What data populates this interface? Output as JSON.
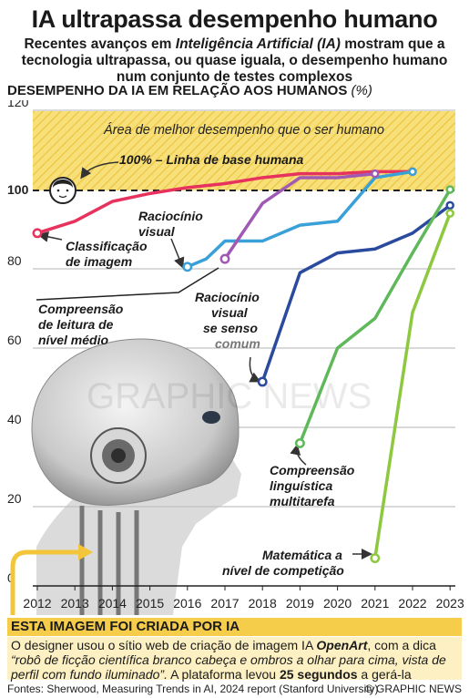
{
  "header": {
    "title": "IA ultrapassa desempenho humano",
    "subtitle_1": "Recentes avanços em ",
    "subtitle_em": "Inteligência Artificial (IA)",
    "subtitle_2": " mostram que a tecnologia ultrapassa, ou quase iguala, o desempenho humano num conjunto de testes complexos"
  },
  "chart_heading": {
    "text": "DESEMPENHO DA IA EM RELAÇÃO AOS HUMANOS",
    "unit": "(%)"
  },
  "chart_data": {
    "type": "line",
    "x_ticks": [
      "2012",
      "2013",
      "2014",
      "2015",
      "2016",
      "2017",
      "2018",
      "2019",
      "2020",
      "2021",
      "2022",
      "2023"
    ],
    "y_ticks": [
      "0",
      "20",
      "40",
      "60",
      "80",
      "100",
      "120"
    ],
    "ylim": [
      0,
      120
    ],
    "zone_label": "Área de melhor desempenho que o ser humano",
    "baseline_label": "100% – Linha de base humana",
    "watermark": "GRAPHIC NEWS",
    "series": [
      {
        "name": "Classificação de imagem",
        "color": "#e8325e",
        "x": [
          2012,
          2013,
          2014,
          2015,
          2016,
          2017,
          2018,
          2019,
          2020,
          2021,
          2022
        ],
        "values": [
          89,
          92,
          97,
          99,
          100.5,
          101.5,
          103,
          104,
          104,
          104.5,
          104.5
        ]
      },
      {
        "name": "Raciocínio visual",
        "color": "#3aa0d8",
        "x": [
          2016,
          2016.5,
          2017,
          2018,
          2019,
          2020,
          2021,
          2022
        ],
        "values": [
          80.5,
          82.5,
          87,
          87,
          91,
          92,
          103,
          104.5
        ]
      },
      {
        "name": "Raciocínio visual se senso comum",
        "color": "#a05ab4",
        "x": [
          2017,
          2018,
          2019,
          2020,
          2021
        ],
        "values": [
          82.5,
          96.5,
          103,
          103,
          104
        ]
      },
      {
        "name": "Compreensão de leitura de nível médio",
        "color": "#2a4a9e",
        "x": [
          2018,
          2019,
          2020,
          2021,
          2022,
          2023
        ],
        "values": [
          51.5,
          79,
          84,
          85,
          89,
          96
        ]
      },
      {
        "name": "Compreensão linguística multitarefa",
        "color": "#5fb85a",
        "x": [
          2019,
          2020,
          2021,
          2022,
          2023
        ],
        "values": [
          36,
          60,
          67.5,
          84,
          100
        ]
      },
      {
        "name": "Matemática a nível de competição",
        "color": "#8dc83f",
        "x": [
          2021,
          2022,
          2023
        ],
        "values": [
          7,
          69,
          94
        ]
      }
    ],
    "series_labels": [
      {
        "lines": [
          "Classificação",
          "de imagem"
        ],
        "light": []
      },
      {
        "lines": [
          "Raciocínio",
          "visual"
        ],
        "light": []
      },
      {
        "lines": [
          "Raciocínio",
          "visual",
          "se senso",
          "comum"
        ],
        "light": [
          3
        ]
      },
      {
        "lines": [
          "Compreensão",
          "de leitura de",
          "nível médio"
        ],
        "light": []
      },
      {
        "lines": [
          "Compreensão",
          "linguística",
          "multitarefa"
        ],
        "light": []
      },
      {
        "lines": [
          "Matemática a",
          "nível de competição"
        ],
        "light": []
      }
    ]
  },
  "note": {
    "heading": "ESTA IMAGEM FOI CRIADA POR IA",
    "text_1": "O designer usou o sítio web de criação de imagem IA ",
    "text_brand": "OpenArt",
    "text_2": ", com a dica ",
    "text_quote": "“robô de ficção científica branco cabeça e ombros a olhar para cima, vista de perfil com fundo iluminado”.",
    "text_3": " A plataforma levou ",
    "text_bold": "25 segundos",
    "text_4": " a gerá-la"
  },
  "footer": {
    "source": "Fontes: Sherwood, Measuring Trends in AI, 2024 report (Stanford University)",
    "brand": "© GRAPHIC NEWS"
  }
}
